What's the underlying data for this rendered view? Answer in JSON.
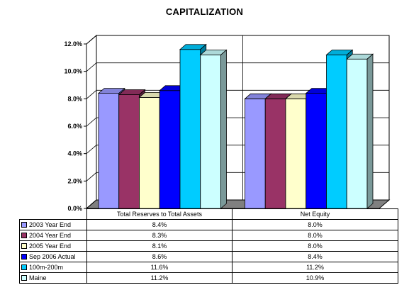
{
  "chart_data": {
    "type": "bar",
    "title": "CAPITALIZATION",
    "categories": [
      "Total Reserves to Total Assets",
      "Net Equity"
    ],
    "series": [
      {
        "name": "2003 Year End",
        "values": [
          8.4,
          8.0
        ],
        "value_labels": [
          "8.4%",
          "8.0%"
        ],
        "color": "#9999ff"
      },
      {
        "name": "2004 Year End",
        "values": [
          8.3,
          8.0
        ],
        "value_labels": [
          "8.3%",
          "8.0%"
        ],
        "color": "#993366"
      },
      {
        "name": "2005 Year End",
        "values": [
          8.1,
          8.0
        ],
        "value_labels": [
          "8.1%",
          "8.0%"
        ],
        "color": "#ffffcc"
      },
      {
        "name": "Sep 2006 Actual",
        "values": [
          8.6,
          8.4
        ],
        "value_labels": [
          "8.6%",
          "8.4%"
        ],
        "color": "#0000ff"
      },
      {
        "name": "100m-200m",
        "values": [
          11.6,
          11.2
        ],
        "value_labels": [
          "11.6%",
          "11.2%"
        ],
        "color": "#00ccff"
      },
      {
        "name": "Maine",
        "values": [
          11.2,
          10.9
        ],
        "value_labels": [
          "11.2%",
          "10.9%"
        ],
        "color": "#ccffff"
      }
    ],
    "y_ticks": [
      "0.0%",
      "2.0%",
      "4.0%",
      "6.0%",
      "8.0%",
      "10.0%",
      "12.0%"
    ],
    "ylim": [
      0,
      12
    ],
    "xlabel": "",
    "ylabel": "",
    "grid": true,
    "legend": "data-table",
    "style": "3d-clustered-column"
  }
}
